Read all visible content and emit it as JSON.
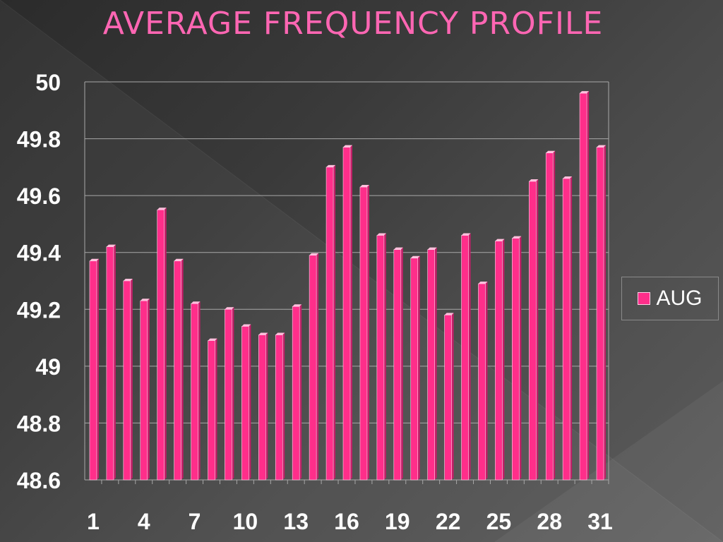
{
  "title": "AVERAGE FREQUENCY PROFILE",
  "colors": {
    "bar": "#ff2e8a",
    "bar_top": "#ffc0dd",
    "grid": "#a8a8a8",
    "title": "#ff66b3",
    "tick": "#ffffff"
  },
  "chart_data": {
    "type": "bar",
    "categories": [
      "1",
      "2",
      "3",
      "4",
      "5",
      "6",
      "7",
      "8",
      "9",
      "10",
      "11",
      "12",
      "13",
      "14",
      "15",
      "16",
      "17",
      "18",
      "19",
      "20",
      "21",
      "22",
      "23",
      "24",
      "25",
      "26",
      "27",
      "28",
      "29",
      "30",
      "31"
    ],
    "x_tick_labels": [
      "1",
      "4",
      "7",
      "10",
      "13",
      "16",
      "19",
      "22",
      "25",
      "28",
      "31"
    ],
    "y_tick_labels": [
      "48.6",
      "48.8",
      "49",
      "49.2",
      "49.4",
      "49.6",
      "49.8",
      "50"
    ],
    "series": [
      {
        "name": "AUG",
        "values": [
          49.37,
          49.42,
          49.3,
          49.23,
          49.55,
          49.37,
          49.22,
          49.09,
          49.2,
          49.14,
          49.11,
          49.11,
          49.21,
          49.39,
          49.7,
          49.77,
          49.63,
          49.46,
          49.41,
          49.38,
          49.41,
          49.18,
          49.46,
          49.29,
          49.44,
          49.45,
          49.65,
          49.75,
          49.66,
          49.96,
          49.77
        ]
      }
    ],
    "ylim": [
      48.6,
      50
    ],
    "xlabel": "",
    "ylabel": "",
    "grid": true,
    "legend_position": "right"
  }
}
